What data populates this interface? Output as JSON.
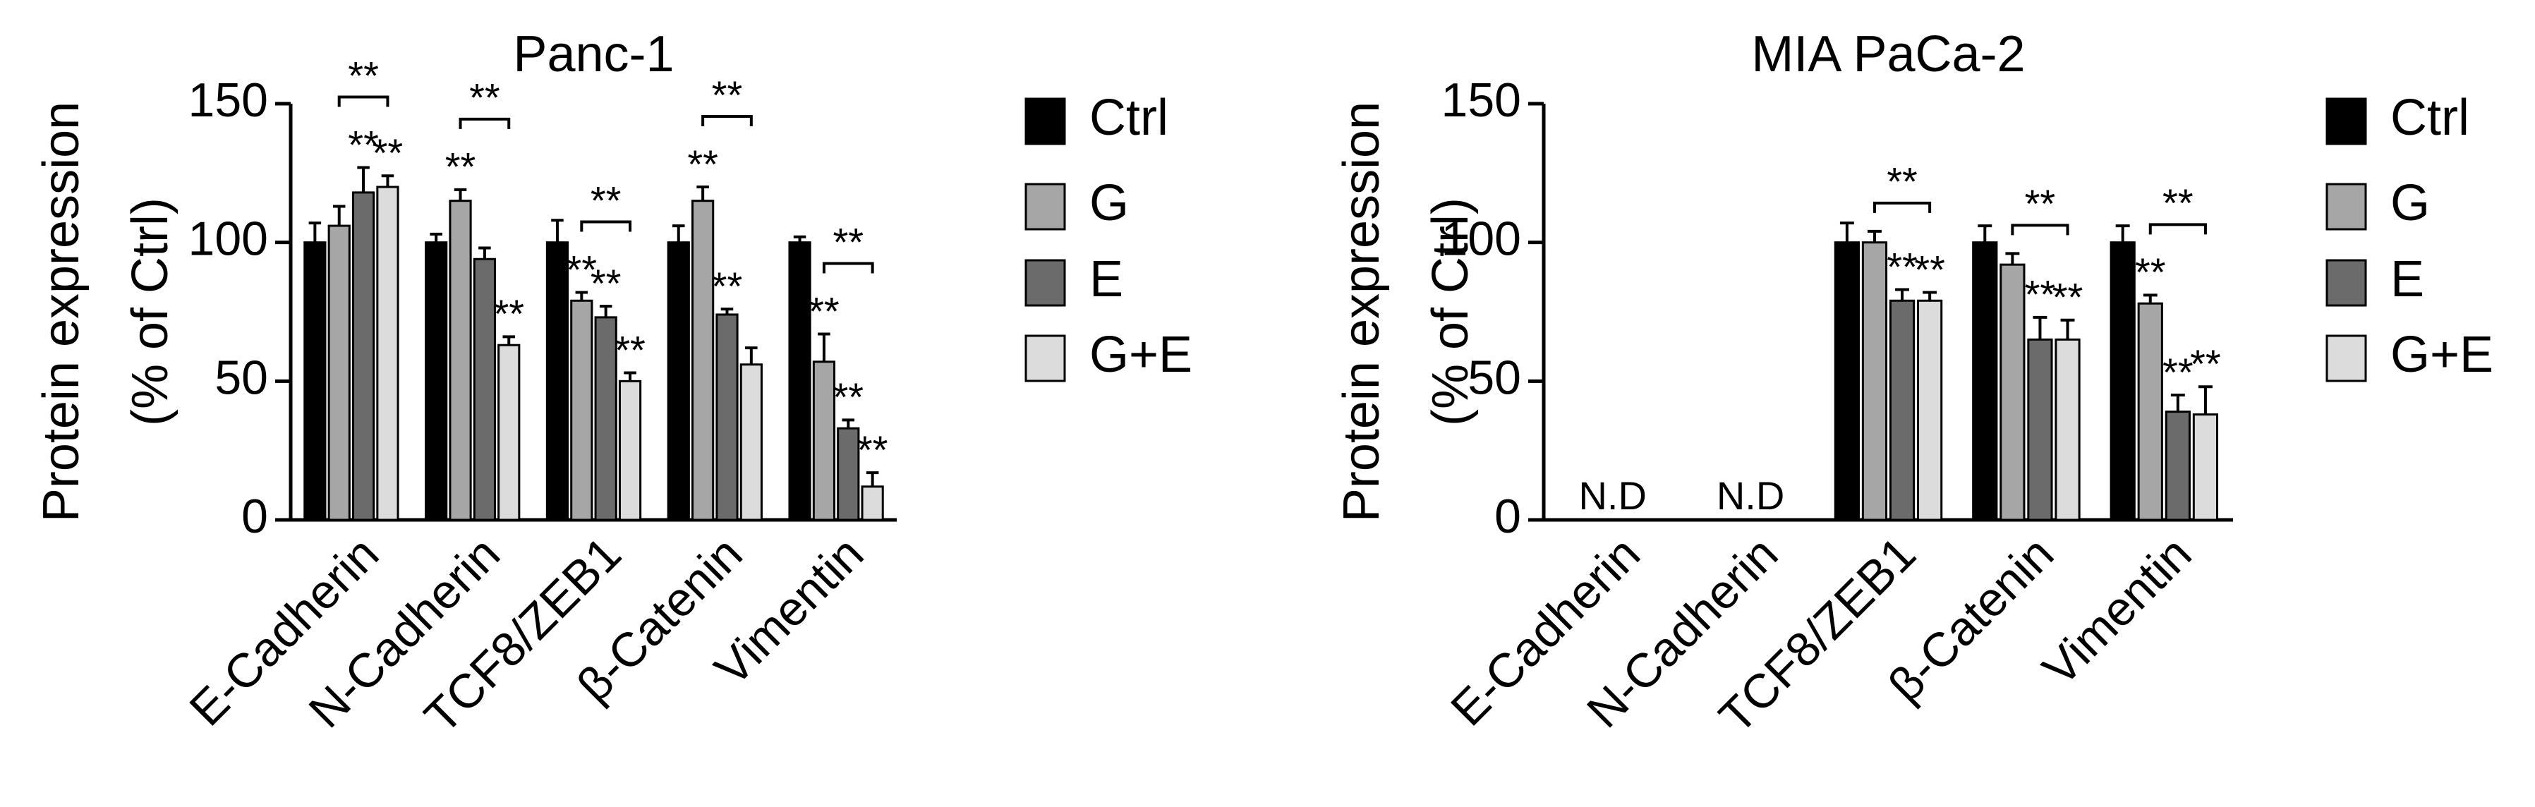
{
  "chart_data": [
    {
      "type": "bar",
      "title": "Panc-1",
      "ylabel": [
        "Protein expression",
        "(% of Ctrl)"
      ],
      "categories": [
        "E-Cadherin",
        "N-Cadherin",
        "TCF8/ZEB1",
        "β-Catenin",
        "Vimentin"
      ],
      "ylim": [
        0,
        150
      ],
      "yticks": [
        0,
        50,
        100,
        150
      ],
      "series": [
        {
          "name": "Ctrl",
          "color": "#000000",
          "values": [
            100,
            100,
            100,
            100,
            100
          ],
          "errors": [
            7,
            3,
            8,
            6,
            2
          ],
          "annotations": [
            null,
            null,
            null,
            null,
            null
          ]
        },
        {
          "name": "G",
          "color": "#a6a6a6",
          "values": [
            106,
            115,
            79,
            115,
            57
          ],
          "errors": [
            7,
            4,
            3,
            5,
            10
          ],
          "annotations": [
            null,
            "**",
            "**",
            "**",
            "**"
          ]
        },
        {
          "name": "E",
          "color": "#6b6b6b",
          "values": [
            118,
            94,
            73,
            74,
            33
          ],
          "errors": [
            9,
            4,
            4,
            2,
            3
          ],
          "annotations": [
            "**",
            null,
            "**",
            "**",
            "**"
          ]
        },
        {
          "name": "G+E",
          "color": "#dcdcdc",
          "values": [
            120,
            63,
            50,
            56,
            12
          ],
          "errors": [
            4,
            3,
            3,
            6,
            5
          ],
          "annotations": [
            "**",
            "**",
            "**",
            null,
            "**"
          ]
        }
      ],
      "bracket_labels": [
        "**",
        "**",
        "**",
        "**",
        "**"
      ],
      "category_notes": [
        null,
        null,
        null,
        null,
        null
      ]
    },
    {
      "type": "bar",
      "title": "MIA PaCa-2",
      "ylabel": [
        "Protein expression",
        "(% of Ctrl)"
      ],
      "categories": [
        "E-Cadherin",
        "N-Cadherin",
        "TCF8/ZEB1",
        "β-Catenin",
        "Vimentin"
      ],
      "ylim": [
        0,
        150
      ],
      "yticks": [
        0,
        50,
        100,
        150
      ],
      "series": [
        {
          "name": "Ctrl",
          "color": "#000000",
          "values": [
            null,
            null,
            100,
            100,
            100
          ],
          "errors": [
            null,
            null,
            7,
            6,
            6
          ],
          "annotations": [
            null,
            null,
            null,
            null,
            null
          ]
        },
        {
          "name": "G",
          "color": "#a6a6a6",
          "values": [
            null,
            null,
            100,
            92,
            78
          ],
          "errors": [
            null,
            null,
            4,
            4,
            3
          ],
          "annotations": [
            null,
            null,
            null,
            null,
            "**"
          ]
        },
        {
          "name": "E",
          "color": "#6b6b6b",
          "values": [
            null,
            null,
            79,
            65,
            39
          ],
          "errors": [
            null,
            null,
            4,
            8,
            6
          ],
          "annotations": [
            null,
            null,
            "**",
            "**",
            "**"
          ]
        },
        {
          "name": "G+E",
          "color": "#dcdcdc",
          "values": [
            null,
            null,
            79,
            65,
            38
          ],
          "errors": [
            null,
            null,
            3,
            7,
            10
          ],
          "annotations": [
            null,
            null,
            "**",
            "**",
            "**"
          ]
        }
      ],
      "bracket_labels": [
        null,
        null,
        "**",
        "**",
        "**"
      ],
      "category_notes": [
        "N.D",
        "N.D",
        null,
        null,
        null
      ]
    }
  ]
}
